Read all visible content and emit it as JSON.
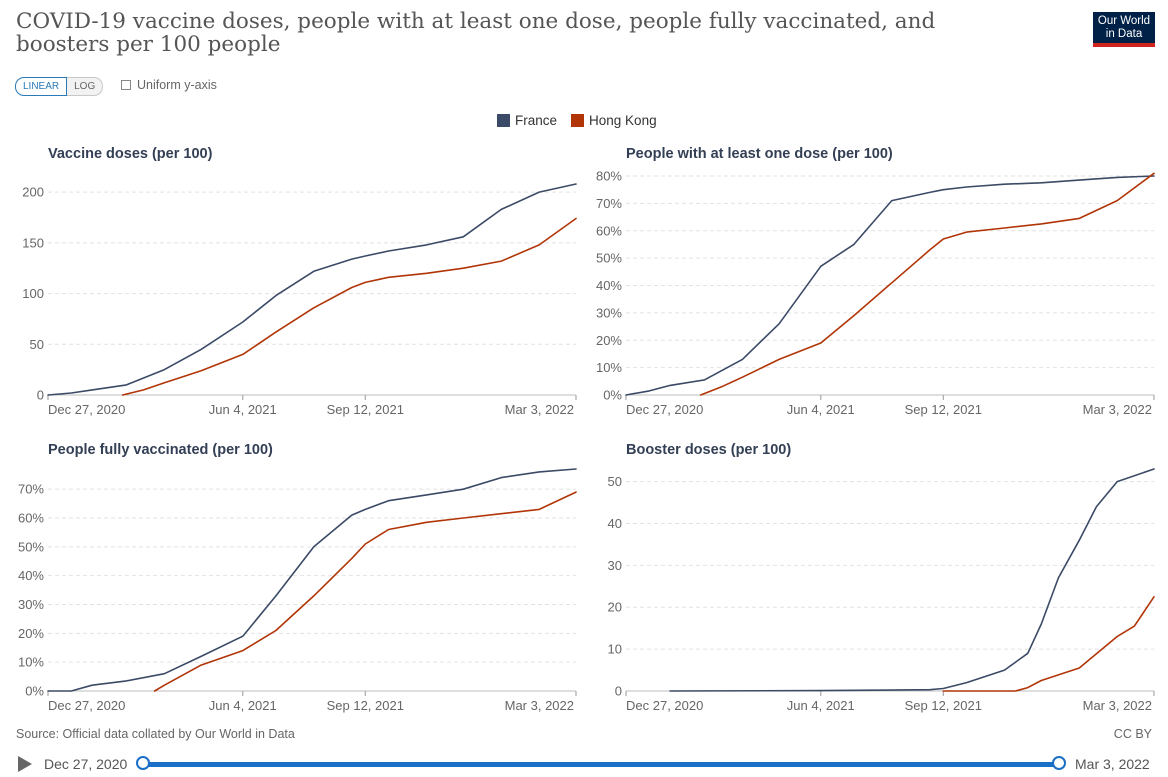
{
  "header": {
    "title": "COVID-19 vaccine doses, people with at least one dose, people fully vaccinated, and boosters per 100 people",
    "logo_line1": "Our World",
    "logo_line2": "in Data"
  },
  "controls": {
    "linear_label": "LINEAR",
    "log_label": "LOG",
    "uniform_label": "Uniform y-axis"
  },
  "legend": [
    {
      "name": "France",
      "color": "#3b4a66"
    },
    {
      "name": "Hong Kong",
      "color": "#b13507"
    }
  ],
  "colors": {
    "france": "#3b4a66",
    "hong_kong": "#b13507",
    "accent": "#1a6fc6"
  },
  "x_tick_labels": [
    "Dec 27, 2020",
    "Jun 4, 2021",
    "Sep 12, 2021",
    "Mar 3, 2022"
  ],
  "chart_data": [
    {
      "type": "line",
      "title": "Vaccine doses (per 100)",
      "ylim": [
        0,
        210
      ],
      "yticks": [
        0,
        50,
        100,
        150,
        200
      ],
      "ytick_labels": [
        "0",
        "50",
        "100",
        "150",
        "200"
      ],
      "grid": true,
      "series": [
        {
          "name": "France",
          "x": [
            "2020-12-27",
            "2021-01-15",
            "2021-02-01",
            "2021-03-01",
            "2021-04-01",
            "2021-05-01",
            "2021-06-04",
            "2021-07-01",
            "2021-08-01",
            "2021-09-01",
            "2021-09-12",
            "2021-10-01",
            "2021-11-01",
            "2021-12-01",
            "2022-01-01",
            "2022-02-01",
            "2022-03-03"
          ],
          "y": [
            0,
            2,
            5,
            10,
            25,
            45,
            72,
            98,
            122,
            134,
            137,
            142,
            148,
            156,
            183,
            200,
            208
          ]
        },
        {
          "name": "Hong Kong",
          "x": [
            "2021-02-26",
            "2021-03-15",
            "2021-04-01",
            "2021-05-01",
            "2021-06-04",
            "2021-07-01",
            "2021-08-01",
            "2021-09-01",
            "2021-09-12",
            "2021-10-01",
            "2021-11-01",
            "2021-12-01",
            "2022-01-01",
            "2022-02-01",
            "2022-03-03"
          ],
          "y": [
            0,
            5,
            12,
            24,
            40,
            62,
            86,
            106,
            111,
            116,
            120,
            125,
            132,
            148,
            174
          ]
        }
      ]
    },
    {
      "type": "line",
      "title": "People with at least one dose (per 100)",
      "ylim": [
        0,
        80
      ],
      "yticks": [
        0,
        10,
        20,
        30,
        40,
        50,
        60,
        70,
        80
      ],
      "ytick_labels": [
        "0%",
        "10%",
        "20%",
        "30%",
        "40%",
        "50%",
        "60%",
        "70%",
        "80%"
      ],
      "grid": true,
      "series": [
        {
          "name": "France",
          "x": [
            "2020-12-27",
            "2021-01-15",
            "2021-02-01",
            "2021-03-01",
            "2021-04-01",
            "2021-05-01",
            "2021-06-04",
            "2021-07-01",
            "2021-08-01",
            "2021-09-01",
            "2021-09-12",
            "2021-10-01",
            "2021-11-01",
            "2021-12-01",
            "2022-01-01",
            "2022-02-01",
            "2022-03-03"
          ],
          "y": [
            0,
            1.5,
            3.5,
            5.5,
            13,
            26,
            47,
            55,
            71,
            74,
            75,
            76,
            77,
            77.5,
            78.5,
            79.5,
            80
          ]
        },
        {
          "name": "Hong Kong",
          "x": [
            "2021-02-26",
            "2021-03-15",
            "2021-04-01",
            "2021-05-01",
            "2021-06-04",
            "2021-07-01",
            "2021-08-01",
            "2021-09-01",
            "2021-09-12",
            "2021-10-01",
            "2021-11-01",
            "2021-12-01",
            "2022-01-01",
            "2022-02-01",
            "2022-03-03"
          ],
          "y": [
            0,
            3,
            6.5,
            13,
            19,
            29,
            41,
            53,
            57,
            59.5,
            61,
            62.5,
            64.5,
            71,
            81
          ]
        }
      ]
    },
    {
      "type": "line",
      "title": "People fully vaccinated (per 100)",
      "ylim": [
        0,
        77
      ],
      "yticks": [
        0,
        10,
        20,
        30,
        40,
        50,
        60,
        70
      ],
      "ytick_labels": [
        "0%",
        "10%",
        "20%",
        "30%",
        "40%",
        "50%",
        "60%",
        "70%"
      ],
      "grid": true,
      "series": [
        {
          "name": "France",
          "x": [
            "2020-12-27",
            "2021-01-15",
            "2021-02-01",
            "2021-03-01",
            "2021-04-01",
            "2021-05-01",
            "2021-06-04",
            "2021-07-01",
            "2021-08-01",
            "2021-09-01",
            "2021-09-12",
            "2021-10-01",
            "2021-11-01",
            "2021-12-01",
            "2022-01-01",
            "2022-02-01",
            "2022-03-03"
          ],
          "y": [
            0,
            0,
            2,
            3.5,
            6,
            12,
            19,
            33,
            50,
            61,
            63,
            66,
            68,
            70,
            74,
            76,
            77
          ]
        },
        {
          "name": "Hong Kong",
          "x": [
            "2021-03-24",
            "2021-04-01",
            "2021-05-01",
            "2021-06-04",
            "2021-07-01",
            "2021-08-01",
            "2021-09-01",
            "2021-09-12",
            "2021-10-01",
            "2021-11-01",
            "2021-12-01",
            "2022-01-01",
            "2022-02-01",
            "2022-03-03"
          ],
          "y": [
            0,
            2,
            9,
            14,
            21,
            33,
            46,
            51,
            56,
            58.5,
            60,
            61.5,
            63,
            69
          ]
        }
      ]
    },
    {
      "type": "line",
      "title": "Booster doses (per 100)",
      "ylim": [
        0,
        53
      ],
      "yticks": [
        0,
        10,
        20,
        30,
        40,
        50
      ],
      "ytick_labels": [
        "0",
        "10",
        "20",
        "30",
        "40",
        "50"
      ],
      "grid": true,
      "series": [
        {
          "name": "France",
          "x": [
            "2021-02-01",
            "2021-06-04",
            "2021-09-01",
            "2021-09-12",
            "2021-10-01",
            "2021-11-01",
            "2021-11-20",
            "2021-12-01",
            "2021-12-15",
            "2022-01-01",
            "2022-01-15",
            "2022-02-01",
            "2022-03-03"
          ],
          "y": [
            0,
            0.1,
            0.3,
            0.6,
            2,
            5,
            9,
            16,
            27,
            36,
            44,
            50,
            53
          ]
        },
        {
          "name": "Hong Kong",
          "x": [
            "2021-09-12",
            "2021-11-10",
            "2021-11-20",
            "2021-12-01",
            "2022-01-01",
            "2022-02-01",
            "2022-02-15",
            "2022-03-03"
          ],
          "y": [
            0,
            0,
            0.8,
            2.5,
            5.5,
            13,
            15.5,
            22.5
          ]
        }
      ]
    }
  ],
  "footer": {
    "source": "Source: Official data collated by Our World in Data",
    "license": "CC BY"
  },
  "timeline": {
    "start_label": "Dec 27, 2020",
    "end_label": "Mar 3, 2022"
  }
}
